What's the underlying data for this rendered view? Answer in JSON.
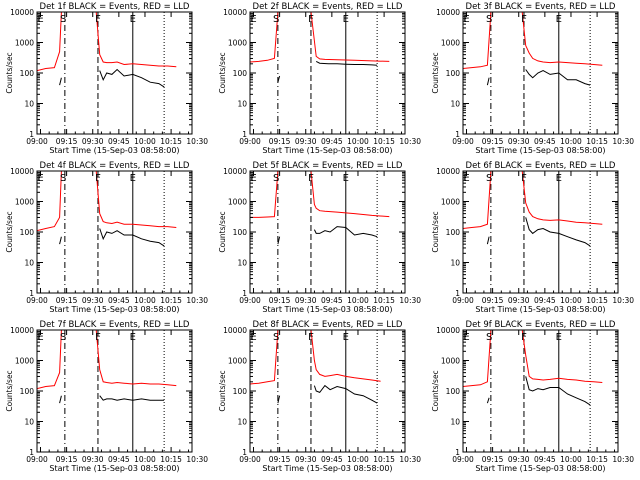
{
  "chart_data": [
    {
      "type": "line",
      "title": "Det 1f BLACK = Events, RED = LLD",
      "xlabel": "Start Time (15-Sep-03 08:58:00)",
      "ylabel": "Counts/sec",
      "yscale": "log",
      "ylim": [
        1,
        10000
      ],
      "xticks": [
        "09:00",
        "09:15",
        "09:30",
        "09:45",
        "10:00",
        "10:15",
        "10:30"
      ],
      "yticks": [
        "1",
        "10",
        "100",
        "1000",
        "10000"
      ],
      "markers": [
        "E",
        "S",
        "F",
        "E"
      ],
      "series": [
        {
          "color": "#ff0000",
          "x": [
            0,
            5,
            10,
            13,
            14,
            16,
            18,
            20,
            30,
            34,
            36,
            38,
            40,
            43,
            46,
            50,
            55,
            60,
            65,
            70,
            75,
            80
          ],
          "y": [
            120,
            140,
            150,
            500,
            10000,
            10000,
            10000,
            10000,
            10000,
            10000,
            400,
            230,
            220,
            220,
            230,
            190,
            200,
            190,
            180,
            170,
            170,
            160
          ]
        },
        {
          "color": "#000000",
          "x": [
            13,
            14
          ],
          "y": [
            40,
            70
          ]
        },
        {
          "color": "#000000",
          "x": [
            36,
            38,
            40,
            43,
            46,
            50,
            55,
            60,
            65,
            70,
            73
          ],
          "y": [
            120,
            60,
            100,
            90,
            130,
            80,
            90,
            70,
            50,
            45,
            35
          ]
        }
      ]
    },
    {
      "type": "line",
      "title": "Det 2f BLACK = Events, RED = LLD",
      "xlabel": "Start Time (15-Sep-03 08:58:00)",
      "ylabel": "Counts/sec",
      "yscale": "log",
      "ylim": [
        1,
        10000
      ],
      "xticks": [
        "09:00",
        "09:15",
        "09:30",
        "09:45",
        "10:00",
        "10:15",
        "10:30"
      ],
      "yticks": [
        "1",
        "10",
        "100",
        "1000",
        "10000"
      ],
      "markers": [
        "E",
        "S",
        "F",
        "E"
      ],
      "series": [
        {
          "color": "#ff0000",
          "x": [
            0,
            5,
            10,
            14,
            16,
            18,
            20,
            30,
            35,
            38,
            40,
            43,
            50,
            60,
            70,
            80
          ],
          "y": [
            230,
            240,
            260,
            300,
            10000,
            10000,
            10000,
            10000,
            10000,
            350,
            290,
            280,
            270,
            260,
            250,
            240
          ]
        },
        {
          "color": "#000000",
          "x": [
            16,
            17
          ],
          "y": [
            50,
            80
          ]
        },
        {
          "color": "#000000",
          "x": [
            38,
            40,
            45,
            50,
            55,
            60,
            65,
            70,
            73
          ],
          "y": [
            240,
            210,
            200,
            200,
            195,
            190,
            190,
            185,
            180
          ]
        }
      ]
    },
    {
      "type": "line",
      "title": "Det 3f BLACK = Events, RED = LLD",
      "xlabel": "Start Time (15-Sep-03 08:58:00)",
      "ylabel": "Counts/sec",
      "yscale": "log",
      "ylim": [
        1,
        10000
      ],
      "xticks": [
        "09:00",
        "09:15",
        "09:30",
        "09:45",
        "10:00",
        "10:15",
        "10:30"
      ],
      "yticks": [
        "1",
        "10",
        "100",
        "1000",
        "10000"
      ],
      "markers": [
        "E",
        "S",
        "F",
        "E"
      ],
      "series": [
        {
          "color": "#ff0000",
          "x": [
            0,
            5,
            10,
            14,
            16,
            18,
            30,
            34,
            36,
            38,
            40,
            43,
            46,
            50,
            55,
            60,
            65,
            70,
            75,
            80
          ],
          "y": [
            140,
            150,
            160,
            180,
            10000,
            10000,
            10000,
            10000,
            800,
            450,
            300,
            250,
            230,
            220,
            230,
            220,
            210,
            200,
            190,
            180
          ]
        },
        {
          "color": "#000000",
          "x": [
            14,
            15
          ],
          "y": [
            40,
            70
          ]
        },
        {
          "color": "#000000",
          "x": [
            36,
            38,
            40,
            43,
            46,
            50,
            55,
            60,
            65,
            70,
            73
          ],
          "y": [
            130,
            90,
            70,
            100,
            120,
            90,
            100,
            60,
            60,
            45,
            40
          ]
        }
      ]
    },
    {
      "type": "line",
      "title": "Det 4f BLACK = Events, RED = LLD",
      "xlabel": "Start Time (15-Sep-03 08:58:00)",
      "ylabel": "Counts/sec",
      "yscale": "log",
      "ylim": [
        1,
        10000
      ],
      "xticks": [
        "09:00",
        "09:15",
        "09:30",
        "09:45",
        "10:00",
        "10:15",
        "10:30"
      ],
      "yticks": [
        "1",
        "10",
        "100",
        "1000",
        "10000"
      ],
      "markers": [
        "E",
        "S",
        "F",
        "E"
      ],
      "series": [
        {
          "color": "#ff0000",
          "x": [
            0,
            5,
            10,
            13,
            14,
            16,
            18,
            20,
            30,
            34,
            36,
            38,
            40,
            43,
            46,
            50,
            55,
            60,
            65,
            70,
            75,
            80
          ],
          "y": [
            110,
            130,
            150,
            300,
            10000,
            10000,
            10000,
            10000,
            10000,
            10000,
            400,
            220,
            200,
            190,
            210,
            180,
            180,
            170,
            160,
            150,
            150,
            140
          ]
        },
        {
          "color": "#000000",
          "x": [
            13,
            14
          ],
          "y": [
            40,
            70
          ]
        },
        {
          "color": "#000000",
          "x": [
            36,
            38,
            40,
            43,
            46,
            50,
            55,
            60,
            65,
            70,
            73
          ],
          "y": [
            130,
            60,
            100,
            90,
            110,
            80,
            80,
            60,
            50,
            45,
            35
          ]
        }
      ]
    },
    {
      "type": "line",
      "title": "Det 5f BLACK = Events, RED = LLD",
      "xlabel": "Start Time (15-Sep-03 08:58:00)",
      "ylabel": "Counts/sec",
      "yscale": "log",
      "ylim": [
        1,
        10000
      ],
      "xticks": [
        "09:00",
        "09:15",
        "09:30",
        "09:45",
        "10:00",
        "10:15",
        "10:30"
      ],
      "yticks": [
        "1",
        "10",
        "100",
        "1000",
        "10000"
      ],
      "markers": [
        "E",
        "S",
        "F",
        "E"
      ],
      "series": [
        {
          "color": "#ff0000",
          "x": [
            0,
            5,
            10,
            14,
            16,
            18,
            20,
            30,
            35,
            37,
            38,
            40,
            43,
            50,
            60,
            70,
            80
          ],
          "y": [
            300,
            300,
            310,
            320,
            10000,
            10000,
            10000,
            10000,
            10000,
            800,
            600,
            500,
            480,
            450,
            400,
            350,
            320
          ]
        },
        {
          "color": "#000000",
          "x": [
            16,
            17
          ],
          "y": [
            40,
            70
          ]
        },
        {
          "color": "#000000",
          "x": [
            37,
            38,
            40,
            43,
            46,
            50,
            55,
            60,
            65,
            70,
            73
          ],
          "y": [
            120,
            90,
            90,
            110,
            100,
            150,
            140,
            80,
            90,
            80,
            70
          ]
        }
      ]
    },
    {
      "type": "line",
      "title": "Det 6f BLACK = Events, RED = LLD",
      "xlabel": "Start Time (15-Sep-03 08:58:00)",
      "ylabel": "Counts/sec",
      "yscale": "log",
      "ylim": [
        1,
        10000
      ],
      "xticks": [
        "09:00",
        "09:15",
        "09:30",
        "09:45",
        "10:00",
        "10:15",
        "10:30"
      ],
      "yticks": [
        "1",
        "10",
        "100",
        "1000",
        "10000"
      ],
      "markers": [
        "E",
        "S",
        "F",
        "E"
      ],
      "series": [
        {
          "color": "#ff0000",
          "x": [
            0,
            5,
            10,
            14,
            16,
            18,
            30,
            34,
            36,
            38,
            40,
            43,
            46,
            50,
            55,
            60,
            65,
            70,
            75,
            80
          ],
          "y": [
            130,
            140,
            150,
            180,
            10000,
            10000,
            10000,
            10000,
            900,
            450,
            320,
            270,
            250,
            240,
            250,
            230,
            210,
            200,
            190,
            180
          ]
        },
        {
          "color": "#000000",
          "x": [
            14,
            15
          ],
          "y": [
            40,
            70
          ]
        },
        {
          "color": "#000000",
          "x": [
            36,
            38,
            40,
            43,
            46,
            50,
            55,
            60,
            65,
            70,
            73
          ],
          "y": [
            300,
            120,
            90,
            120,
            130,
            100,
            90,
            70,
            55,
            45,
            35
          ]
        }
      ]
    },
    {
      "type": "line",
      "title": "Det 7f BLACK = Events, RED = LLD",
      "xlabel": "Start Time (15-Sep-03 08:58:00)",
      "ylabel": "Counts/sec",
      "yscale": "log",
      "ylim": [
        1,
        10000
      ],
      "xticks": [
        "09:00",
        "09:15",
        "09:30",
        "09:45",
        "10:00",
        "10:15",
        "10:30"
      ],
      "yticks": [
        "1",
        "10",
        "100",
        "1000",
        "10000"
      ],
      "markers": [
        "E",
        "S",
        "F",
        "E"
      ],
      "series": [
        {
          "color": "#ff0000",
          "x": [
            0,
            5,
            10,
            13,
            14,
            16,
            18,
            20,
            30,
            34,
            36,
            38,
            40,
            43,
            46,
            50,
            55,
            60,
            65,
            70,
            75,
            80
          ],
          "y": [
            120,
            140,
            150,
            400,
            10000,
            10000,
            10000,
            10000,
            10000,
            10000,
            500,
            200,
            190,
            180,
            190,
            180,
            170,
            180,
            170,
            170,
            160,
            150
          ]
        },
        {
          "color": "#000000",
          "x": [
            13,
            14
          ],
          "y": [
            40,
            70
          ]
        },
        {
          "color": "#000000",
          "x": [
            36,
            38,
            40,
            43,
            46,
            50,
            55,
            60,
            65,
            70,
            73
          ],
          "y": [
            70,
            50,
            55,
            55,
            50,
            55,
            50,
            55,
            50,
            50,
            50
          ]
        }
      ]
    },
    {
      "type": "line",
      "title": "Det 8f BLACK = Events, RED = LLD",
      "xlabel": "Start Time (15-Sep-03 08:58:00)",
      "ylabel": "Counts/sec",
      "yscale": "log",
      "ylim": [
        1,
        10000
      ],
      "xticks": [
        "09:00",
        "09:15",
        "09:30",
        "09:45",
        "10:00",
        "10:15",
        "10:30"
      ],
      "yticks": [
        "1",
        "10",
        "100",
        "1000",
        "10000"
      ],
      "markers": [
        "E",
        "S",
        "F",
        "E"
      ],
      "series": [
        {
          "color": "#ff0000",
          "x": [
            0,
            5,
            10,
            14,
            16,
            18,
            20,
            30,
            35,
            37,
            38,
            40,
            43,
            46,
            50,
            55,
            60,
            65,
            70,
            75
          ],
          "y": [
            170,
            180,
            200,
            220,
            10000,
            10000,
            10000,
            10000,
            10000,
            1000,
            500,
            350,
            300,
            320,
            350,
            300,
            270,
            250,
            230,
            210
          ]
        },
        {
          "color": "#000000",
          "x": [
            16,
            17
          ],
          "y": [
            40,
            70
          ]
        },
        {
          "color": "#000000",
          "x": [
            37,
            38,
            40,
            43,
            46,
            50,
            55,
            60,
            65,
            70,
            73
          ],
          "y": [
            150,
            100,
            90,
            150,
            110,
            140,
            120,
            80,
            70,
            50,
            40
          ]
        }
      ]
    },
    {
      "type": "line",
      "title": "Det 9f BLACK = Events, RED = LLD",
      "xlabel": "Start Time (15-Sep-03 08:58:00)",
      "ylabel": "Counts/sec",
      "yscale": "log",
      "ylim": [
        1,
        10000
      ],
      "xticks": [
        "09:00",
        "09:15",
        "09:30",
        "09:45",
        "10:00",
        "10:15",
        "10:30"
      ],
      "yticks": [
        "1",
        "10",
        "100",
        "1000",
        "10000"
      ],
      "markers": [
        "E",
        "S",
        "F",
        "E"
      ],
      "series": [
        {
          "color": "#ff0000",
          "x": [
            0,
            5,
            10,
            14,
            16,
            18,
            30,
            34,
            36,
            38,
            40,
            43,
            46,
            50,
            55,
            60,
            65,
            70,
            75,
            80
          ],
          "y": [
            140,
            150,
            160,
            200,
            10000,
            10000,
            10000,
            10000,
            1500,
            300,
            250,
            240,
            230,
            240,
            260,
            240,
            230,
            210,
            200,
            190
          ]
        },
        {
          "color": "#000000",
          "x": [
            14,
            15
          ],
          "y": [
            40,
            60
          ]
        },
        {
          "color": "#000000",
          "x": [
            36,
            38,
            40,
            43,
            46,
            50,
            55,
            60,
            65,
            70,
            73
          ],
          "y": [
            300,
            110,
            100,
            120,
            110,
            130,
            130,
            80,
            60,
            45,
            35
          ]
        }
      ]
    }
  ]
}
